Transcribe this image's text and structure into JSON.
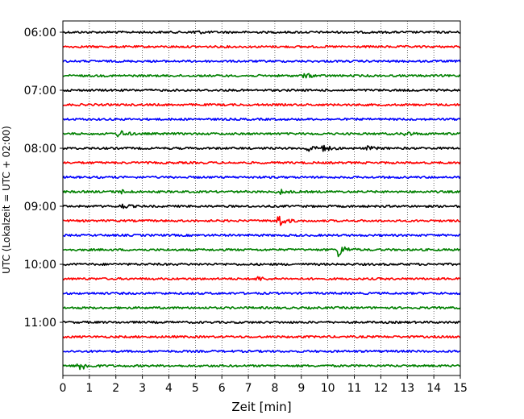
{
  "chart_data": {
    "type": "line",
    "title": "",
    "xlabel": "Zeit  [min]",
    "ylabel": "UTC (Lokalzeit = UTC + 02:00)",
    "xlim": [
      0,
      15
    ],
    "x_ticks": [
      0,
      1,
      2,
      3,
      4,
      5,
      6,
      7,
      8,
      9,
      10,
      11,
      12,
      13,
      14,
      15
    ],
    "y_tick_labels": [
      "06:00",
      "07:00",
      "08:00",
      "09:00",
      "10:00",
      "11:00"
    ],
    "grid": "vertical dotted",
    "trace_interval_min": 15,
    "color_cycle": [
      "#000000",
      "#ff0000",
      "#0000ff",
      "#008000"
    ],
    "rows": [
      {
        "start": "06:00",
        "events": [
          {
            "t": 4.9,
            "amp": 3
          }
        ]
      },
      {
        "start": "06:15",
        "events": []
      },
      {
        "start": "06:30",
        "events": []
      },
      {
        "start": "06:45",
        "events": [
          {
            "t": 9.1,
            "amp": 3
          }
        ]
      },
      {
        "start": "07:00",
        "events": []
      },
      {
        "start": "07:15",
        "events": []
      },
      {
        "start": "07:30",
        "events": []
      },
      {
        "start": "07:45",
        "events": [
          {
            "t": 2.1,
            "amp": 5
          },
          {
            "t": 12.9,
            "amp": 3
          }
        ]
      },
      {
        "start": "08:00",
        "events": [
          {
            "t": 9.2,
            "amp": 5
          },
          {
            "t": 9.8,
            "amp": 4
          },
          {
            "t": 11.5,
            "amp": 2
          }
        ]
      },
      {
        "start": "08:15",
        "events": []
      },
      {
        "start": "08:30",
        "events": []
      },
      {
        "start": "08:45",
        "events": [
          {
            "t": 2.1,
            "amp": 3
          },
          {
            "t": 8.1,
            "amp": 4
          }
        ]
      },
      {
        "start": "09:00",
        "events": [
          {
            "t": 2.2,
            "amp": 3
          }
        ]
      },
      {
        "start": "09:15",
        "events": [
          {
            "t": 8.1,
            "amp": 9
          }
        ]
      },
      {
        "start": "09:30",
        "events": []
      },
      {
        "start": "09:45",
        "events": [
          {
            "t": 10.4,
            "amp": 9
          }
        ]
      },
      {
        "start": "10:00",
        "events": []
      },
      {
        "start": "10:15",
        "events": [
          {
            "t": 7.3,
            "amp": 3
          }
        ]
      },
      {
        "start": "10:30",
        "events": []
      },
      {
        "start": "10:45",
        "events": []
      },
      {
        "start": "11:00",
        "events": []
      },
      {
        "start": "11:15",
        "events": []
      },
      {
        "start": "11:30",
        "events": []
      },
      {
        "start": "11:45",
        "events": [
          {
            "t": 0.6,
            "amp": 8
          }
        ]
      }
    ]
  }
}
